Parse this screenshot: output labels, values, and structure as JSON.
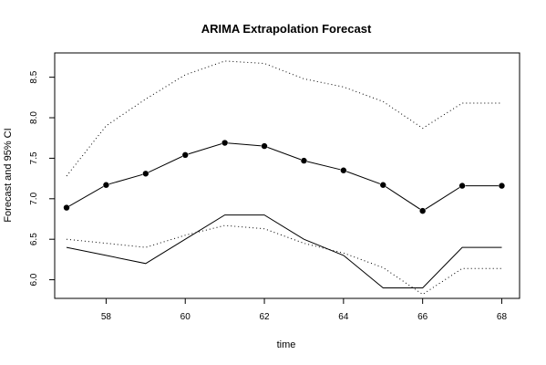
{
  "chart_data": {
    "type": "line",
    "title": "ARIMA Extrapolation Forecast",
    "xlabel": "time",
    "ylabel": "Forecast and 95% CI",
    "xlim": [
      56.7,
      68.45
    ],
    "ylim": [
      5.77,
      8.8
    ],
    "xticks": [
      "58",
      "60",
      "62",
      "64",
      "66",
      "68"
    ],
    "yticks": [
      "6.0",
      "6.5",
      "7.0",
      "7.5",
      "8.0",
      "8.5"
    ],
    "grid": false,
    "x": [
      57,
      58,
      59,
      60,
      61,
      62,
      63,
      64,
      65,
      66,
      67,
      68
    ],
    "series": [
      {
        "role": "actual",
        "style": "solid",
        "values": [
          6.4,
          6.3,
          6.2,
          6.5,
          6.8,
          6.8,
          6.5,
          6.3,
          5.9,
          5.9,
          6.4,
          6.4
        ]
      },
      {
        "role": "forecast",
        "style": "line-points",
        "values": [
          6.89,
          7.17,
          7.31,
          7.54,
          7.69,
          7.65,
          7.47,
          7.35,
          7.17,
          6.85,
          7.16,
          7.16
        ]
      },
      {
        "role": "upper-ci",
        "style": "dotted",
        "values": [
          7.28,
          7.9,
          8.23,
          8.53,
          8.7,
          8.67,
          8.48,
          8.38,
          8.2,
          7.87,
          8.18,
          8.18
        ]
      },
      {
        "role": "lower-ci",
        "style": "dotted",
        "values": [
          6.5,
          6.45,
          6.4,
          6.55,
          6.67,
          6.63,
          6.45,
          6.33,
          6.15,
          5.82,
          6.14,
          6.14
        ]
      }
    ]
  }
}
